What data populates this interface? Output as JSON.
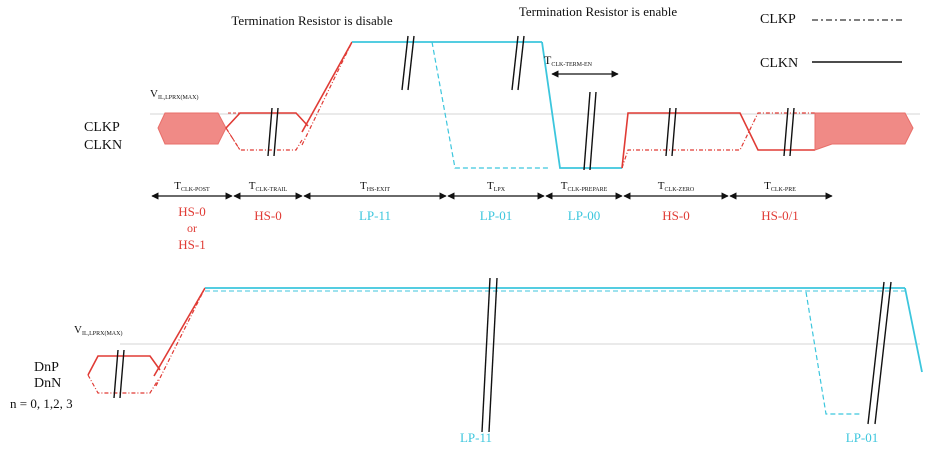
{
  "header": {
    "term_disable": "Termination Resistor is disable",
    "term_enable": "Termination Resistor is enable"
  },
  "legend": {
    "clkp": "CLKP",
    "clkn": "CLKN"
  },
  "clock": {
    "vil_label": "V",
    "vil_sub": "IL,LPRX(MAX)",
    "signal_line1": "CLKP",
    "signal_line2": "CLKN",
    "t_term_en": "T",
    "t_term_en_sub": "CLK-TERM-EN",
    "timing": [
      {
        "label": "T",
        "sub": "CLK-POST",
        "state": "HS-0"
      },
      {
        "label": "T",
        "sub": "CLK-TRAIL",
        "state": "HS-0"
      },
      {
        "label": "T",
        "sub": "HS-EXIT",
        "state": "LP-11"
      },
      {
        "label": "T",
        "sub": "LPX",
        "state": "LP-01"
      },
      {
        "label": "T",
        "sub": "CLK-PREPARE",
        "state": "LP-00"
      },
      {
        "label": "T",
        "sub": "CLK-ZERO",
        "state": "HS-0"
      },
      {
        "label": "T",
        "sub": "CLK-PRE",
        "state": "HS-0/1"
      }
    ],
    "post_state_line2": "or",
    "post_state_line3": "HS-1"
  },
  "data": {
    "vil_label": "V",
    "vil_sub": "IL,LPRX(MAX)",
    "signal_line1": "DnP",
    "signal_line2": "DnN",
    "signal_line3": "n = 0, 1,2, 3",
    "state_left": "LP-11",
    "state_right": "LP-01"
  },
  "colors": {
    "hs": "#e03b35",
    "lp": "#3cc6dd",
    "fill": "#f08a86",
    "ref": "#cccccc"
  }
}
